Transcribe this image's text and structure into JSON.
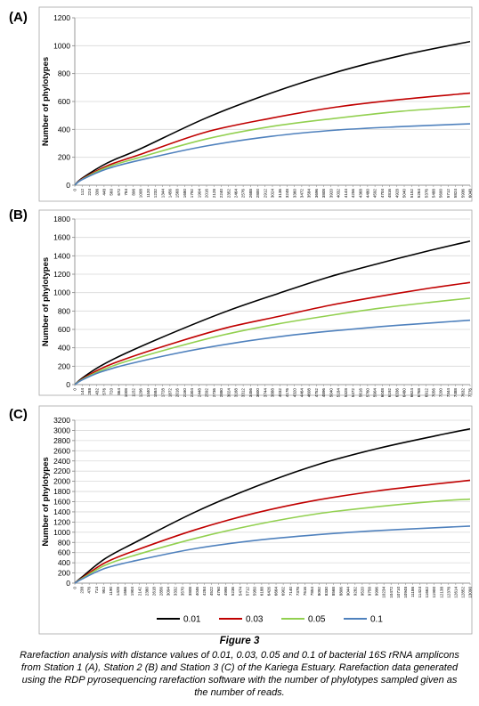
{
  "figure": {
    "title": "Figure 3",
    "caption": "Rarefaction analysis with distance values of 0.01, 0.03, 0.05 and 0.1 of bacterial 16S rRNA amplicons from Station 1 (A), Station 2 (B) and Station 3 (C) of the Kariega Estuary. Rarefaction data generated using the RDP pyrosequencing rarefaction software with the number of phylotypes sampled given as the number of reads."
  },
  "legend": {
    "placement": "bottom-center",
    "entries": [
      {
        "label": "0.01",
        "color": "#000000"
      },
      {
        "label": "0.03",
        "color": "#c00000"
      },
      {
        "label": "0.05",
        "color": "#92d050"
      },
      {
        "label": "0.1",
        "color": "#4f81bd"
      }
    ]
  },
  "chart_data": [
    {
      "type": "line",
      "panel_label": "(A)",
      "ylabel": "Number of phylotypes",
      "xlabel": "",
      "ylim": [
        0,
        1200
      ],
      "yticks": [
        0,
        200,
        400,
        600,
        800,
        1000,
        1200
      ],
      "xlim": [
        0,
        6048
      ],
      "xtick_step": 112,
      "grid": "horizontal",
      "series": [
        {
          "name": "0.01",
          "color": "#000000",
          "x": [
            0,
            112,
            500,
            1000,
            2000,
            3000,
            4000,
            5000,
            6048
          ],
          "y": [
            0,
            50,
            160,
            260,
            480,
            660,
            810,
            930,
            1030
          ]
        },
        {
          "name": "0.03",
          "color": "#c00000",
          "x": [
            0,
            112,
            500,
            1000,
            2000,
            3000,
            4000,
            5000,
            6048
          ],
          "y": [
            0,
            45,
            140,
            220,
            380,
            480,
            560,
            615,
            660
          ]
        },
        {
          "name": "0.05",
          "color": "#92d050",
          "x": [
            0,
            112,
            500,
            1000,
            2000,
            3000,
            4000,
            5000,
            6048
          ],
          "y": [
            0,
            42,
            130,
            200,
            330,
            420,
            480,
            530,
            565
          ]
        },
        {
          "name": "0.1",
          "color": "#4f81bd",
          "x": [
            0,
            112,
            500,
            1000,
            2000,
            3000,
            4000,
            5000,
            6048
          ],
          "y": [
            0,
            40,
            118,
            180,
            280,
            350,
            395,
            420,
            440
          ]
        }
      ]
    },
    {
      "type": "line",
      "panel_label": "(B)",
      "ylabel": "Number of phylotypes",
      "xlabel": "",
      "ylim": [
        0,
        1800
      ],
      "yticks": [
        0,
        200,
        400,
        600,
        800,
        1000,
        1200,
        1400,
        1600,
        1800
      ],
      "xlim": [
        0,
        7776
      ],
      "xtick_step": 144,
      "grid": "horizontal",
      "series": [
        {
          "name": "0.01",
          "color": "#000000",
          "x": [
            0,
            144,
            500,
            1000,
            2000,
            3000,
            4000,
            5000,
            6000,
            7000,
            7776
          ],
          "y": [
            0,
            70,
            200,
            340,
            580,
            800,
            990,
            1170,
            1320,
            1460,
            1560
          ]
        },
        {
          "name": "0.03",
          "color": "#c00000",
          "x": [
            0,
            144,
            500,
            1000,
            2000,
            3000,
            4000,
            5000,
            6000,
            7000,
            7776
          ],
          "y": [
            0,
            60,
            170,
            280,
            460,
            620,
            740,
            860,
            960,
            1050,
            1110
          ]
        },
        {
          "name": "0.05",
          "color": "#92d050",
          "x": [
            0,
            144,
            500,
            1000,
            2000,
            3000,
            4000,
            5000,
            6000,
            7000,
            7776
          ],
          "y": [
            0,
            55,
            150,
            250,
            410,
            550,
            660,
            750,
            830,
            895,
            940
          ]
        },
        {
          "name": "0.1",
          "color": "#4f81bd",
          "x": [
            0,
            144,
            500,
            1000,
            2000,
            3000,
            4000,
            5000,
            6000,
            7000,
            7776
          ],
          "y": [
            0,
            50,
            135,
            215,
            340,
            440,
            520,
            580,
            630,
            670,
            700
          ]
        }
      ]
    },
    {
      "type": "line",
      "panel_label": "(C)",
      "ylabel": "Number of phylotypes",
      "xlabel": "",
      "ylim": [
        0,
        3200
      ],
      "yticks": [
        0,
        200,
        400,
        600,
        800,
        1000,
        1200,
        1400,
        1600,
        1800,
        2000,
        2200,
        2400,
        2600,
        2800,
        3000,
        3200
      ],
      "xlim": [
        0,
        13090
      ],
      "xtick_step": 238,
      "grid": "horizontal",
      "series": [
        {
          "name": "0.01",
          "color": "#000000",
          "x": [
            0,
            238,
            1000,
            2000,
            4000,
            6000,
            8000,
            10000,
            12000,
            13090
          ],
          "y": [
            0,
            120,
            480,
            800,
            1400,
            1900,
            2320,
            2640,
            2900,
            3030
          ]
        },
        {
          "name": "0.03",
          "color": "#c00000",
          "x": [
            0,
            238,
            1000,
            2000,
            4000,
            6000,
            8000,
            10000,
            12000,
            13090
          ],
          "y": [
            0,
            100,
            400,
            640,
            1050,
            1380,
            1630,
            1810,
            1950,
            2020
          ]
        },
        {
          "name": "0.05",
          "color": "#92d050",
          "x": [
            0,
            238,
            1000,
            2000,
            4000,
            6000,
            8000,
            10000,
            12000,
            13090
          ],
          "y": [
            0,
            90,
            350,
            550,
            880,
            1150,
            1360,
            1500,
            1610,
            1650
          ]
        },
        {
          "name": "0.1",
          "color": "#4f81bd",
          "x": [
            0,
            238,
            1000,
            2000,
            4000,
            6000,
            8000,
            10000,
            12000,
            13090
          ],
          "y": [
            0,
            80,
            290,
            440,
            680,
            840,
            950,
            1030,
            1090,
            1120
          ]
        }
      ]
    }
  ]
}
